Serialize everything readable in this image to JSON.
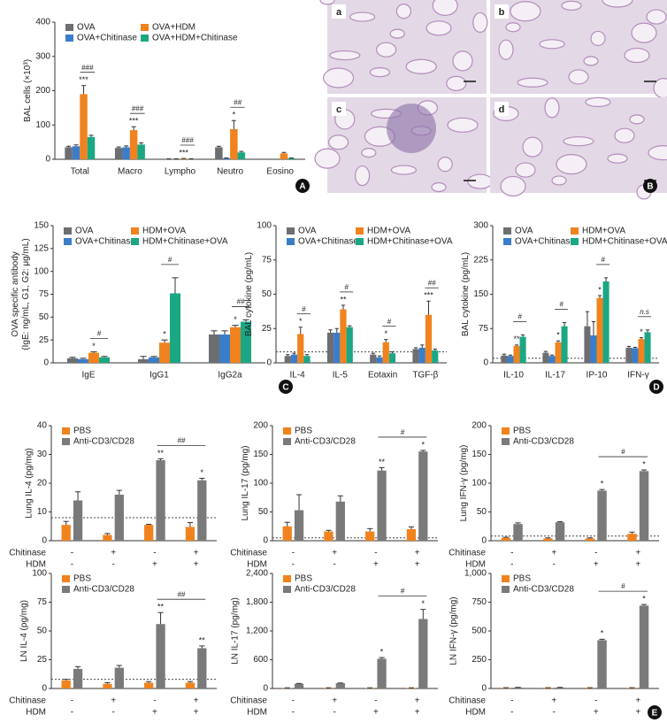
{
  "conditions": [
    {
      "label": "Chitinase",
      "signs": [
        "-",
        "+",
        "-",
        "+"
      ]
    },
    {
      "label": "HDM",
      "signs": [
        "-",
        "-",
        "+",
        "+"
      ]
    }
  ],
  "chart_data": [
    {
      "type": "bar",
      "label": "A",
      "y_label": [
        "BAL cells (×10³)"
      ],
      "categories": [
        "Total",
        "Macro",
        "Lympho",
        "Neutro",
        "Eosino"
      ],
      "ylim": [
        0,
        400
      ],
      "yticks": [
        0,
        100,
        200,
        300,
        400
      ],
      "series": [
        {
          "name": "OVA",
          "color": "#6d6e71",
          "values": [
            35,
            33,
            1,
            35,
            0
          ],
          "errors": [
            3,
            3,
            0.5,
            3,
            0
          ]
        },
        {
          "name": "OVA+Chitinase",
          "color": "#3a7dc9",
          "values": [
            38,
            35,
            1,
            3,
            0
          ],
          "errors": [
            4,
            4,
            0.5,
            1,
            0
          ]
        },
        {
          "name": "OVA+HDM",
          "color": "#f0831e",
          "values": [
            190,
            85,
            2,
            88,
            17
          ],
          "errors": [
            25,
            10,
            0.5,
            25,
            3
          ]
        },
        {
          "name": "OVA+HDM+Chitinase",
          "color": "#1ba784",
          "values": [
            65,
            43,
            1,
            20,
            3
          ],
          "errors": [
            5,
            5,
            0.5,
            3,
            1
          ]
        }
      ],
      "annotations": [
        "***",
        "###",
        "***",
        "###",
        "***",
        "###",
        "*",
        "##"
      ]
    },
    {
      "type": "image",
      "label": "B",
      "panels": [
        "a",
        "b",
        "c",
        "d"
      ]
    },
    {
      "type": "bar",
      "label": "C",
      "y_label": [
        "OVA specific antibody",
        "(IgE: ng/mL, G1, G2: μg/mL)"
      ],
      "categories": [
        "IgE",
        "IgG1",
        "IgG2a"
      ],
      "ylim": [
        0,
        150
      ],
      "yticks": [
        0,
        25,
        50,
        75,
        100,
        125,
        150
      ],
      "series": [
        {
          "name": "OVA",
          "color": "#6d6e71",
          "values": [
            5,
            4,
            31
          ],
          "errors": [
            1,
            3,
            4
          ]
        },
        {
          "name": "OVA+Chitinase",
          "color": "#3a7dc9",
          "values": [
            4,
            6,
            31
          ],
          "errors": [
            1,
            1,
            4
          ]
        },
        {
          "name": "HDM+OVA",
          "color": "#f0831e",
          "values": [
            11,
            22,
            39
          ],
          "errors": [
            1,
            3,
            2
          ]
        },
        {
          "name": "HDM+Chitinase+OVA",
          "color": "#1ba784",
          "values": [
            6,
            76,
            45
          ],
          "errors": [
            1,
            17,
            2
          ]
        }
      ],
      "annotations": [
        "*",
        "#",
        "*",
        "#",
        "*",
        "##"
      ]
    },
    {
      "type": "bar",
      "y_label": [
        "BAL cytokine (pg/mL)"
      ],
      "categories": [
        "IL-4",
        "IL-5",
        "Eotaxin",
        "TGF-β"
      ],
      "ylim": [
        0,
        100
      ],
      "yticks": [
        0,
        25,
        50,
        75,
        100
      ],
      "reference_line": 8,
      "series": [
        {
          "name": "OVA",
          "color": "#6d6e71",
          "values": [
            5,
            22,
            6,
            10
          ],
          "errors": [
            1,
            2,
            1,
            1
          ]
        },
        {
          "name": "OVA+Chitinase",
          "color": "#3a7dc9",
          "values": [
            6,
            22,
            4,
            11
          ],
          "errors": [
            1,
            3,
            1,
            2
          ]
        },
        {
          "name": "HDM+OVA",
          "color": "#f0831e",
          "values": [
            21,
            39,
            15,
            35
          ],
          "errors": [
            5,
            3,
            2,
            10
          ]
        },
        {
          "name": "HDM+Chitinase+OVA",
          "color": "#1ba784",
          "values": [
            5,
            26,
            7,
            9
          ],
          "errors": [
            1,
            1,
            1,
            1
          ]
        }
      ],
      "annotations": [
        "*",
        "#",
        "**",
        "#",
        "*",
        "#",
        "***",
        "##"
      ]
    },
    {
      "type": "bar",
      "label": "D",
      "y_label": [
        "BAL cytokine (pg/mL)"
      ],
      "categories": [
        "IL-10",
        "IL-17",
        "IP-10",
        "IFN-γ"
      ],
      "ylim": [
        0,
        300
      ],
      "yticks": [
        0,
        75,
        150,
        225,
        300
      ],
      "reference_line": 10,
      "series": [
        {
          "name": "OVA",
          "color": "#6d6e71",
          "values": [
            16,
            22,
            80,
            33
          ],
          "errors": [
            3,
            3,
            32,
            3
          ]
        },
        {
          "name": "OVA+Chitinase",
          "color": "#3a7dc9",
          "values": [
            15,
            15,
            60,
            32
          ],
          "errors": [
            2,
            2,
            30,
            2
          ]
        },
        {
          "name": "HDM+OVA",
          "color": "#f0831e",
          "values": [
            37,
            45,
            142,
            52
          ],
          "errors": [
            2,
            3,
            5,
            3
          ]
        },
        {
          "name": "HDM+Chitinase+OVA",
          "color": "#1ba784",
          "values": [
            57,
            80,
            178,
            67
          ],
          "errors": [
            4,
            8,
            8,
            5
          ]
        }
      ],
      "annotations": [
        "**",
        "#",
        "*",
        "#",
        "*",
        "#",
        "*",
        "n.s"
      ]
    },
    {
      "type": "bar",
      "y_label": [
        "Lung IL-4 (pg/mg)"
      ],
      "ylim": [
        0,
        40
      ],
      "yticks": [
        0,
        10,
        20,
        30,
        40
      ],
      "reference_line": 8,
      "series": [
        {
          "name": "PBS",
          "color": "#f0831e",
          "values": [
            5.5,
            2,
            5.5,
            4.8
          ],
          "errors": [
            1.2,
            0.5,
            0.2,
            1.5
          ]
        },
        {
          "name": "Anti-CD3/CD28",
          "color": "#7a7a7a",
          "values": [
            14,
            16,
            28,
            21
          ],
          "errors": [
            3,
            1.5,
            0.5,
            0.7
          ]
        }
      ],
      "annotations": [
        "**",
        "*",
        "##"
      ]
    },
    {
      "type": "bar",
      "y_label": [
        "Lung IL-17 (pg/mg)"
      ],
      "ylim": [
        0,
        200
      ],
      "yticks": [
        0,
        50,
        100,
        150,
        200
      ],
      "reference_line": 5,
      "series": [
        {
          "name": "PBS",
          "color": "#f0831e",
          "values": [
            25,
            16,
            16,
            20
          ],
          "errors": [
            7,
            2,
            5,
            4
          ]
        },
        {
          "name": "Anti-CD3/CD28",
          "color": "#7a7a7a",
          "values": [
            53,
            68,
            122,
            155
          ],
          "errors": [
            27,
            10,
            5,
            2
          ]
        }
      ],
      "annotations": [
        "**",
        "*",
        "#"
      ]
    },
    {
      "type": "bar",
      "y_label": [
        "Lung IFN-γ (pg/mg)"
      ],
      "ylim": [
        0,
        200
      ],
      "yticks": [
        0,
        50,
        100,
        150,
        200
      ],
      "reference_line": 8,
      "series": [
        {
          "name": "PBS",
          "color": "#f0831e",
          "values": [
            5,
            4,
            4,
            12
          ],
          "errors": [
            1,
            1,
            1,
            3
          ]
        },
        {
          "name": "Anti-CD3/CD28",
          "color": "#7a7a7a",
          "values": [
            29,
            32,
            87,
            121
          ],
          "errors": [
            2,
            1,
            2,
            2
          ]
        }
      ],
      "annotations": [
        "*",
        "*",
        "#"
      ]
    },
    {
      "type": "bar",
      "y_label": [
        "LN IL-4 (pg/mg)"
      ],
      "ylim": [
        0,
        100
      ],
      "yticks": [
        0,
        25,
        50,
        75,
        100
      ],
      "reference_line": 8,
      "series": [
        {
          "name": "PBS",
          "color": "#f0831e",
          "values": [
            7,
            4,
            5,
            5
          ],
          "errors": [
            1,
            1,
            1,
            1
          ]
        },
        {
          "name": "Anti-CD3/CD28",
          "color": "#7a7a7a",
          "values": [
            17,
            18,
            56,
            35
          ],
          "errors": [
            2,
            2,
            10,
            2
          ]
        }
      ],
      "annotations": [
        "**",
        "**",
        "##"
      ]
    },
    {
      "type": "bar",
      "y_label": [
        "LN IL-17 (pg/mg)"
      ],
      "ylim": [
        0,
        2400
      ],
      "yticks": [
        0,
        600,
        {
          "value": 1200,
          "label": "1,200"
        },
        {
          "value": 1800,
          "label": "1,800"
        },
        {
          "value": 2400,
          "label": "2,400"
        }
      ],
      "series": [
        {
          "name": "PBS",
          "color": "#f0831e",
          "values": [
            10,
            10,
            10,
            10
          ],
          "errors": [
            5,
            5,
            5,
            5
          ]
        },
        {
          "name": "Anti-CD3/CD28",
          "color": "#7a7a7a",
          "values": [
            100,
            110,
            620,
            1450
          ],
          "errors": [
            5,
            5,
            25,
            200
          ]
        }
      ],
      "annotations": [
        "*",
        "*",
        "#"
      ]
    },
    {
      "type": "bar",
      "label": "E",
      "y_label": [
        "LN IFN-γ (pg/mg)"
      ],
      "ylim": [
        0,
        1000
      ],
      "yticks": [
        0,
        250,
        500,
        750,
        {
          "value": 1000,
          "label": "1,000"
        }
      ],
      "series": [
        {
          "name": "PBS",
          "color": "#f0831e",
          "values": [
            5,
            5,
            5,
            5
          ],
          "errors": [
            2,
            2,
            2,
            2
          ]
        },
        {
          "name": "Anti-CD3/CD28",
          "color": "#7a7a7a",
          "values": [
            8,
            8,
            420,
            720
          ],
          "errors": [
            2,
            2,
            8,
            10
          ]
        }
      ],
      "annotations": [
        "*",
        "*",
        "#"
      ]
    }
  ]
}
